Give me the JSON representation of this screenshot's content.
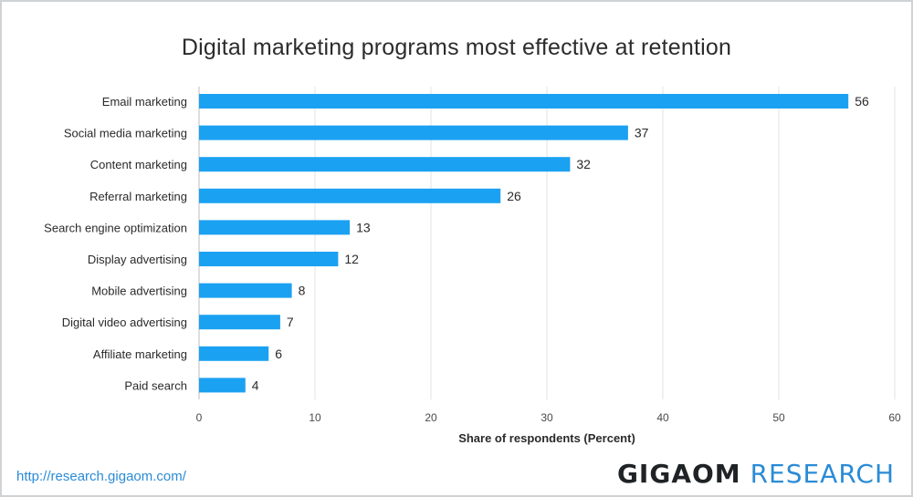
{
  "chart_data": {
    "type": "bar",
    "orientation": "horizontal",
    "title": "Digital marketing programs most effective at retention",
    "xlabel": "Share of respondents (Percent)",
    "ylabel": "",
    "categories": [
      "Email marketing",
      "Social media marketing",
      "Content marketing",
      "Referral marketing",
      "Search engine optimization",
      "Display advertising",
      "Mobile advertising",
      "Digital video advertising",
      "Affiliate marketing",
      "Paid search"
    ],
    "values": [
      56,
      37,
      32,
      26,
      13,
      12,
      8,
      7,
      6,
      4
    ],
    "xlim": [
      0,
      60
    ],
    "xticks": [
      0,
      10,
      20,
      30,
      40,
      50,
      60
    ],
    "grid": "vertical",
    "bar_color": "#1ba1f2"
  },
  "footer": {
    "source_url": "http://research.gigaom.com/",
    "brand_main": "GIGAOM",
    "brand_sub": "RESEARCH"
  },
  "colors": {
    "grid": "#e3e3e3",
    "brand_blue": "#2a8bd6"
  }
}
